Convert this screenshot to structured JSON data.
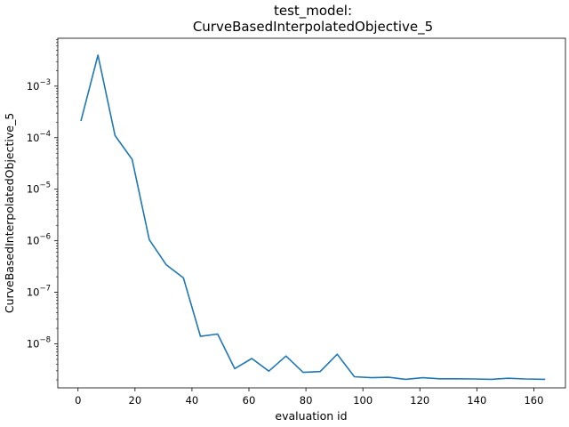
{
  "chart_data": {
    "type": "line",
    "title_line1": "test_model:",
    "title_line2": "CurveBasedInterpolatedObjective_5",
    "xlabel": "evaluation id",
    "ylabel": "CurveBasedInterpolatedObjective_5",
    "y_scale": "log",
    "xlim": [
      -7.1,
      171.1
    ],
    "ylim": [
      1.4e-09,
      0.0085
    ],
    "x_ticks": [
      0,
      20,
      40,
      60,
      80,
      100,
      120,
      140,
      160
    ],
    "x_tick_labels": [
      "0",
      "20",
      "40",
      "60",
      "80",
      "100",
      "120",
      "140",
      "160"
    ],
    "y_ticks": [
      1e-08,
      1e-07,
      1e-06,
      1e-05,
      0.0001,
      0.001
    ],
    "y_tick_labels": [
      {
        "base": "10",
        "exp": "−8"
      },
      {
        "base": "10",
        "exp": "−7"
      },
      {
        "base": "10",
        "exp": "−6"
      },
      {
        "base": "10",
        "exp": "−5"
      },
      {
        "base": "10",
        "exp": "−4"
      },
      {
        "base": "10",
        "exp": "−3"
      }
    ],
    "grid": false,
    "line_color": "#1f77b4",
    "series": [
      {
        "x": [
          1,
          7,
          13,
          19,
          25,
          31,
          37,
          43,
          49,
          55,
          61,
          67,
          73,
          79,
          85,
          91,
          97,
          103,
          109,
          115,
          121,
          127,
          133,
          139,
          145,
          151,
          157,
          164
        ],
        "y": [
          0.00021,
          0.004,
          0.00011,
          3.8e-05,
          1.05e-06,
          3.4e-07,
          1.9e-07,
          1.4e-08,
          1.55e-08,
          3.3e-09,
          5.2e-09,
          2.95e-09,
          5.8e-09,
          2.8e-09,
          2.9e-09,
          6.3e-09,
          2.3e-09,
          2.2e-09,
          2.25e-09,
          2.05e-09,
          2.2e-09,
          2.1e-09,
          2.1e-09,
          2.08e-09,
          2.05e-09,
          2.15e-09,
          2.08e-09,
          2.05e-09
        ]
      }
    ]
  }
}
